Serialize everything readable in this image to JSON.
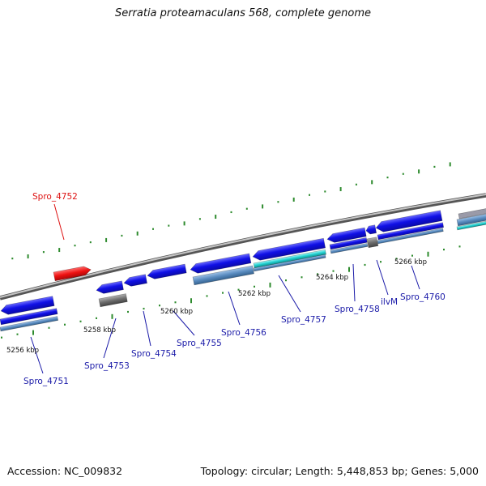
{
  "title": "Serratia proteamaculans 568, complete genome",
  "footer": {
    "accession": "Accession: NC_009832",
    "summary": "Topology: circular; Length: 5,448,853 bp; Genes: 5,000"
  },
  "colors": {
    "gene_forward": "#1010e0",
    "gene_reverse": "#1414e6",
    "gene_highlight": "#ee1111",
    "gene_gray": "#707070",
    "cds_steel": "#5a8cc0",
    "cds_cyan": "#20d0d0",
    "backbone": "#8a8a8a",
    "tick": "#2e8b2e",
    "label_gene": "#1a1aa8",
    "label_highlight": "#dd1111"
  },
  "scale_labels": [
    "5256 kbp",
    "5258 kbp",
    "5260 kbp",
    "5262 kbp",
    "5264 kbp",
    "5266 kbp"
  ],
  "gene_labels": [
    {
      "text": "Spro_4752",
      "highlight": true
    },
    {
      "text": "Spro_4751",
      "highlight": false
    },
    {
      "text": "Spro_4753",
      "highlight": false
    },
    {
      "text": "Spro_4754",
      "highlight": false
    },
    {
      "text": "Spro_4755",
      "highlight": false
    },
    {
      "text": "Spro_4756",
      "highlight": false
    },
    {
      "text": "Spro_4757",
      "highlight": false
    },
    {
      "text": "Spro_4758",
      "highlight": false
    },
    {
      "text": "ilvM",
      "highlight": false
    },
    {
      "text": "Spro_4760",
      "highlight": false
    }
  ]
}
